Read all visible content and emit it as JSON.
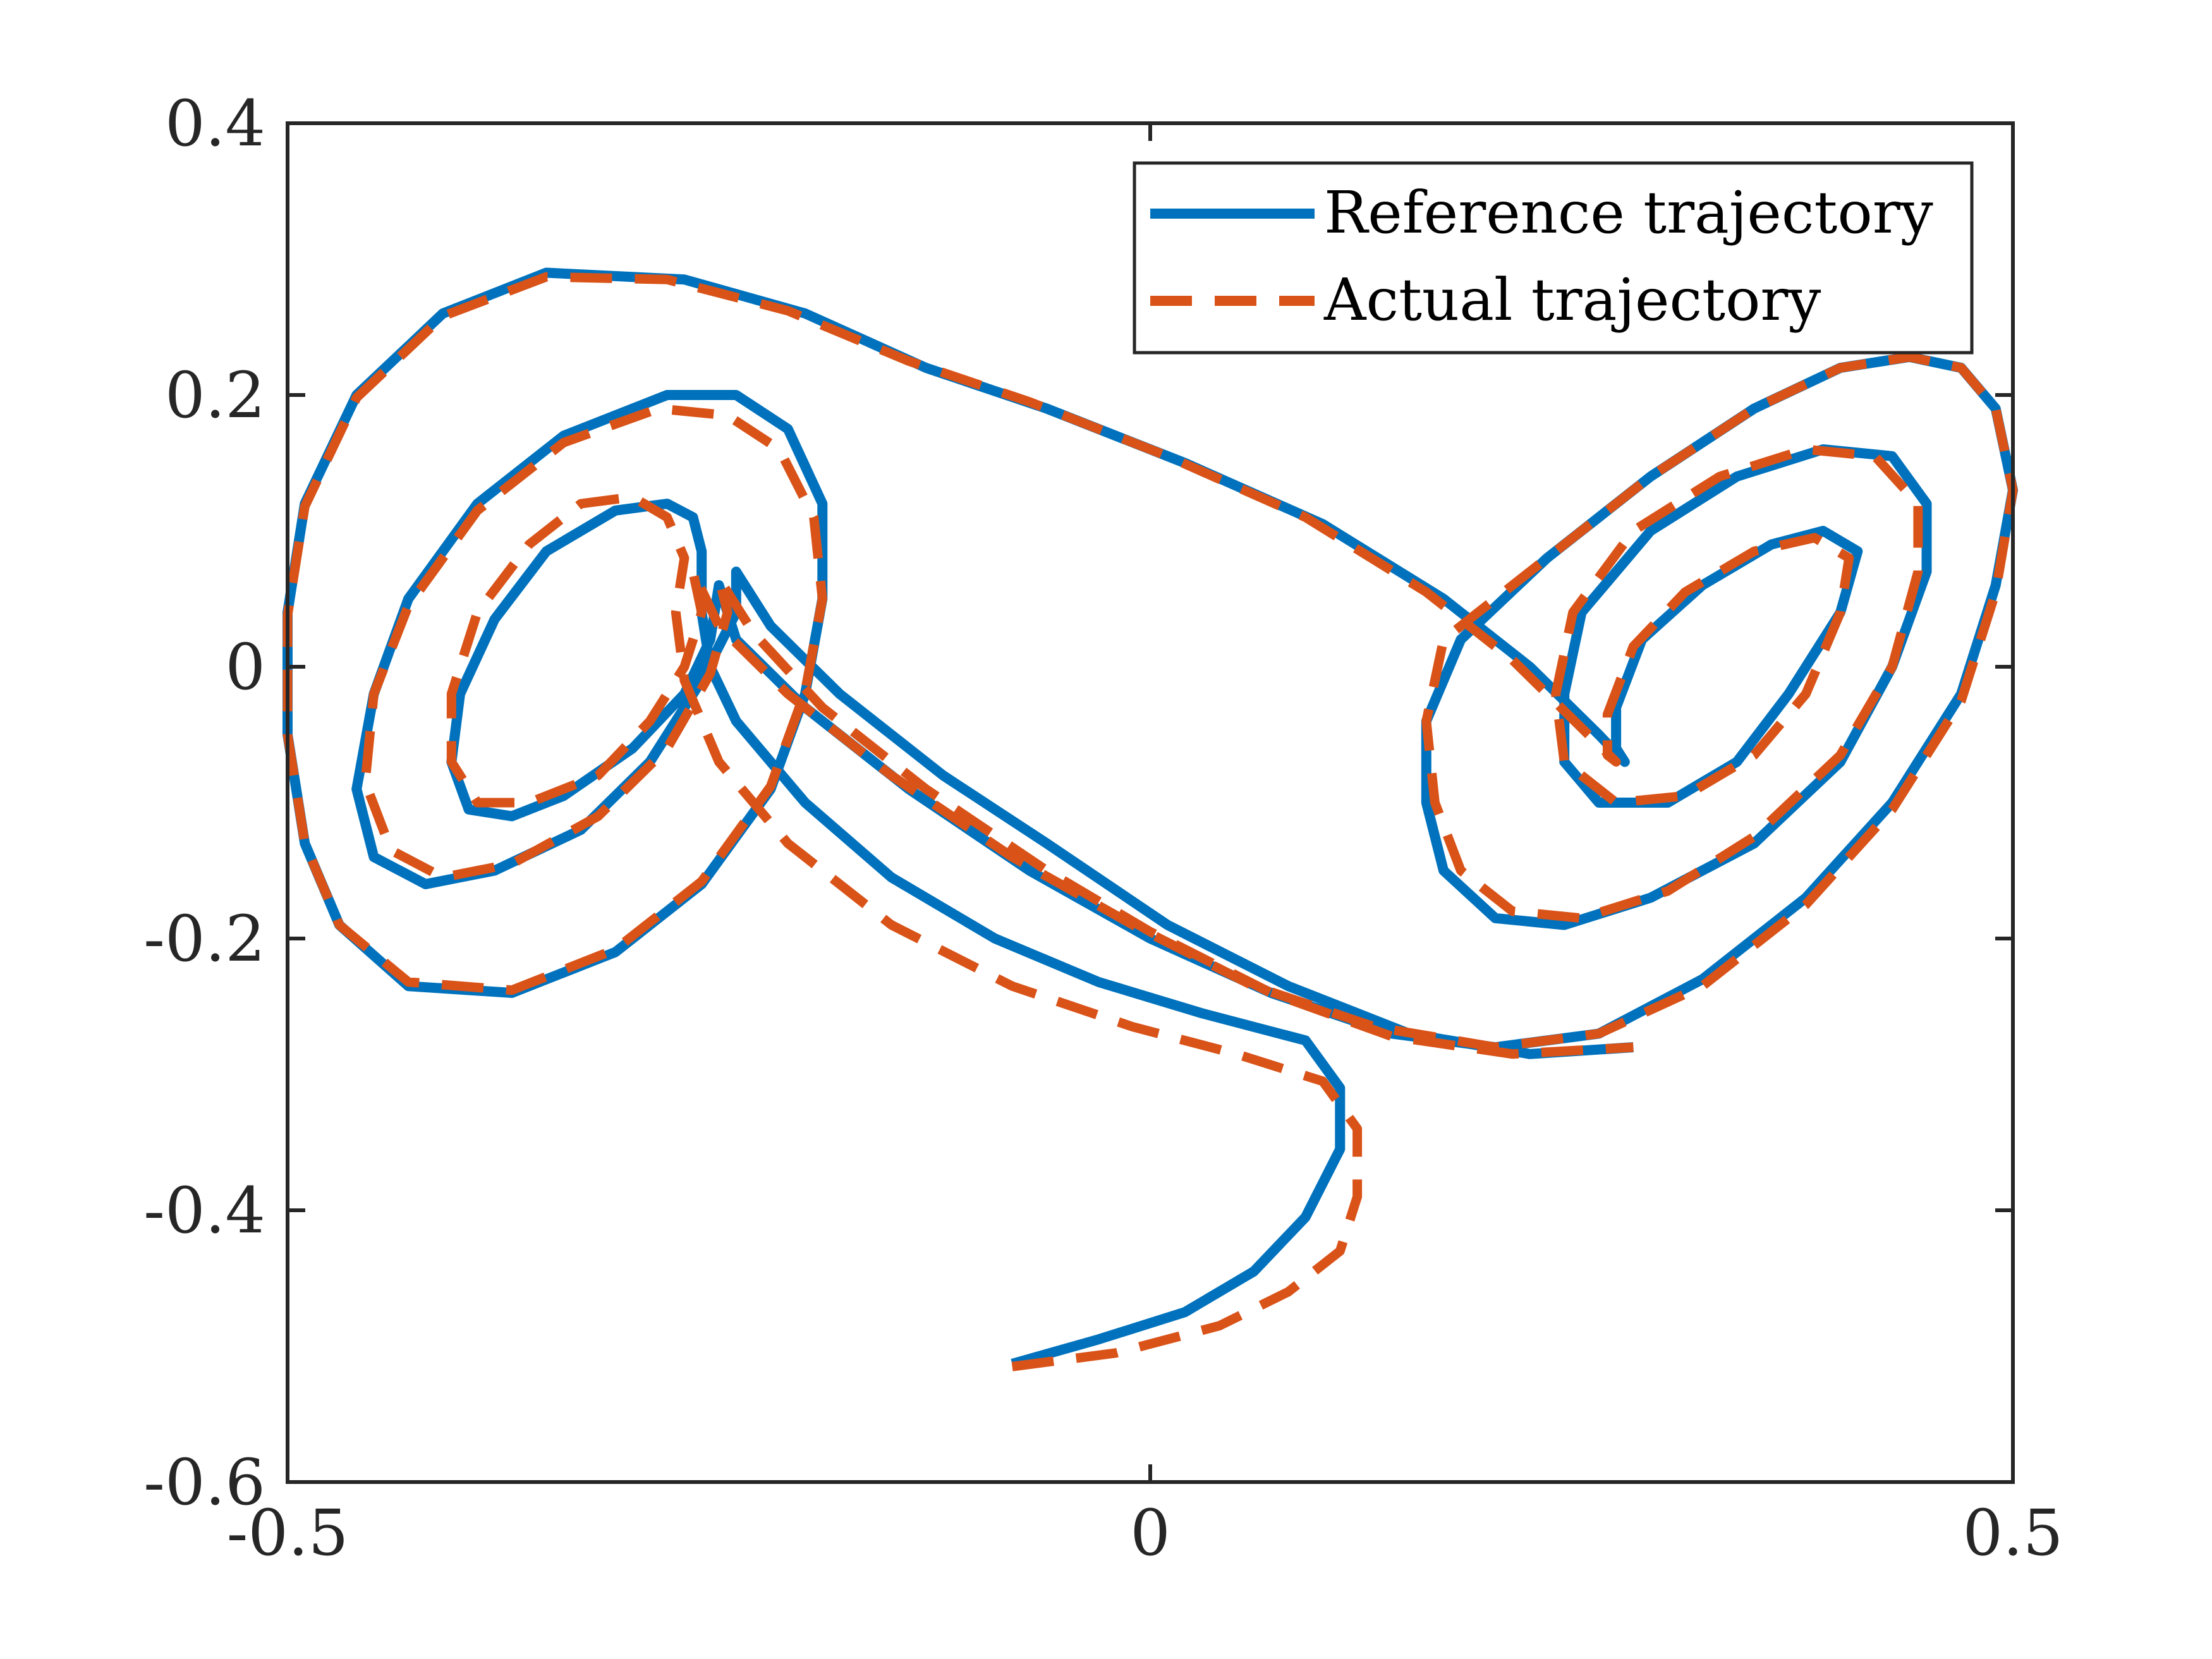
{
  "chart_data": {
    "type": "line",
    "title": "",
    "xlabel": "",
    "ylabel": "",
    "xlim": [
      -0.5,
      0.5
    ],
    "ylim": [
      -0.6,
      0.4
    ],
    "xticks": [
      {
        "value": -0.5,
        "label": "-0.5"
      },
      {
        "value": 0,
        "label": "0"
      },
      {
        "value": 0.5,
        "label": "0.5"
      }
    ],
    "yticks": [
      {
        "value": 0.4,
        "label": "0.4"
      },
      {
        "value": 0.2,
        "label": "0.2"
      },
      {
        "value": 0,
        "label": "0"
      },
      {
        "value": -0.2,
        "label": "-0.2"
      },
      {
        "value": -0.4,
        "label": "-0.4"
      },
      {
        "value": -0.6,
        "label": "-0.6"
      }
    ],
    "grid": false,
    "legend_position": "top-right",
    "series": [
      {
        "name": "Reference trajectory",
        "style": "solid",
        "color": "#0072BD",
        "points": [
          [
            -0.08,
            -0.513
          ],
          [
            -0.03,
            -0.495
          ],
          [
            0.02,
            -0.475
          ],
          [
            0.06,
            -0.445
          ],
          [
            0.09,
            -0.405
          ],
          [
            0.11,
            -0.355
          ],
          [
            0.11,
            -0.31
          ],
          [
            0.09,
            -0.275
          ],
          [
            0.03,
            -0.255
          ],
          [
            -0.03,
            -0.232
          ],
          [
            -0.09,
            -0.2
          ],
          [
            -0.15,
            -0.155
          ],
          [
            -0.2,
            -0.1
          ],
          [
            -0.24,
            -0.04
          ],
          [
            -0.255,
            0.0
          ],
          [
            -0.26,
            0.04
          ],
          [
            -0.26,
            0.085
          ],
          [
            -0.265,
            0.11
          ],
          [
            -0.28,
            0.12
          ],
          [
            -0.31,
            0.115
          ],
          [
            -0.35,
            0.085
          ],
          [
            -0.38,
            0.035
          ],
          [
            -0.4,
            -0.02
          ],
          [
            -0.405,
            -0.07
          ],
          [
            -0.395,
            -0.105
          ],
          [
            -0.37,
            -0.11
          ],
          [
            -0.34,
            -0.095
          ],
          [
            -0.3,
            -0.06
          ],
          [
            -0.27,
            -0.02
          ],
          [
            -0.255,
            0.02
          ],
          [
            -0.25,
            0.06
          ],
          [
            -0.24,
            0.02
          ],
          [
            -0.2,
            -0.03
          ],
          [
            -0.14,
            -0.09
          ],
          [
            -0.07,
            -0.15
          ],
          [
            0.0,
            -0.2
          ],
          [
            0.07,
            -0.24
          ],
          [
            0.14,
            -0.27
          ],
          [
            0.2,
            -0.28
          ],
          [
            0.26,
            -0.27
          ],
          [
            0.32,
            -0.23
          ],
          [
            0.38,
            -0.17
          ],
          [
            0.43,
            -0.1
          ],
          [
            0.47,
            -0.02
          ],
          [
            0.49,
            0.06
          ],
          [
            0.5,
            0.13
          ],
          [
            0.49,
            0.19
          ],
          [
            0.47,
            0.22
          ],
          [
            0.44,
            0.228
          ],
          [
            0.4,
            0.22
          ],
          [
            0.35,
            0.19
          ],
          [
            0.29,
            0.14
          ],
          [
            0.23,
            0.08
          ],
          [
            0.18,
            0.02
          ],
          [
            0.16,
            -0.04
          ],
          [
            0.16,
            -0.1
          ],
          [
            0.17,
            -0.15
          ],
          [
            0.2,
            -0.185
          ],
          [
            0.24,
            -0.19
          ],
          [
            0.29,
            -0.17
          ],
          [
            0.35,
            -0.13
          ],
          [
            0.4,
            -0.07
          ],
          [
            0.43,
            0.0
          ],
          [
            0.45,
            0.07
          ],
          [
            0.45,
            0.12
          ],
          [
            0.43,
            0.155
          ],
          [
            0.39,
            0.16
          ],
          [
            0.34,
            0.14
          ],
          [
            0.29,
            0.1
          ],
          [
            0.25,
            0.04
          ],
          [
            0.24,
            -0.02
          ],
          [
            0.24,
            -0.07
          ],
          [
            0.26,
            -0.1
          ],
          [
            0.3,
            -0.1
          ],
          [
            0.34,
            -0.07
          ],
          [
            0.37,
            -0.02
          ],
          [
            0.4,
            0.04
          ],
          [
            0.41,
            0.085
          ],
          [
            0.39,
            0.1
          ],
          [
            0.36,
            0.09
          ],
          [
            0.32,
            0.06
          ],
          [
            0.285,
            0.02
          ],
          [
            0.27,
            -0.03
          ],
          [
            0.27,
            -0.06
          ],
          [
            0.275,
            -0.07
          ],
          [
            0.26,
            -0.05
          ],
          [
            0.22,
            0.0
          ],
          [
            0.17,
            0.05
          ],
          [
            0.1,
            0.105
          ],
          [
            0.02,
            0.15
          ],
          [
            -0.06,
            0.19
          ],
          [
            -0.13,
            0.22
          ],
          [
            -0.2,
            0.26
          ],
          [
            -0.27,
            0.285
          ],
          [
            -0.35,
            0.29
          ],
          [
            -0.41,
            0.26
          ],
          [
            -0.46,
            0.2
          ],
          [
            -0.49,
            0.12
          ],
          [
            -0.5,
            0.04
          ],
          [
            -0.5,
            -0.05
          ],
          [
            -0.49,
            -0.13
          ],
          [
            -0.47,
            -0.19
          ],
          [
            -0.43,
            -0.235
          ],
          [
            -0.37,
            -0.24
          ],
          [
            -0.31,
            -0.21
          ],
          [
            -0.26,
            -0.16
          ],
          [
            -0.22,
            -0.09
          ],
          [
            -0.2,
            -0.02
          ],
          [
            -0.19,
            0.05
          ],
          [
            -0.19,
            0.12
          ],
          [
            -0.21,
            0.175
          ],
          [
            -0.24,
            0.2
          ],
          [
            -0.28,
            0.2
          ],
          [
            -0.34,
            0.17
          ],
          [
            -0.39,
            0.12
          ],
          [
            -0.43,
            0.05
          ],
          [
            -0.45,
            -0.02
          ],
          [
            -0.46,
            -0.09
          ],
          [
            -0.45,
            -0.14
          ],
          [
            -0.42,
            -0.16
          ],
          [
            -0.38,
            -0.15
          ],
          [
            -0.33,
            -0.12
          ],
          [
            -0.29,
            -0.07
          ],
          [
            -0.26,
            -0.01
          ],
          [
            -0.24,
            0.04
          ],
          [
            -0.24,
            0.07
          ],
          [
            -0.22,
            0.03
          ],
          [
            -0.18,
            -0.02
          ],
          [
            -0.12,
            -0.08
          ],
          [
            -0.06,
            -0.13
          ],
          [
            0.01,
            -0.19
          ],
          [
            0.08,
            -0.235
          ],
          [
            0.15,
            -0.27
          ],
          [
            0.22,
            -0.285
          ],
          [
            0.28,
            -0.28
          ]
        ]
      },
      {
        "name": "Actual trajectory",
        "style": "dashed",
        "color": "#D95319",
        "points": [
          [
            -0.08,
            -0.515
          ],
          [
            -0.02,
            -0.505
          ],
          [
            0.04,
            -0.485
          ],
          [
            0.08,
            -0.46
          ],
          [
            0.11,
            -0.43
          ],
          [
            0.12,
            -0.39
          ],
          [
            0.12,
            -0.34
          ],
          [
            0.1,
            -0.305
          ],
          [
            0.05,
            -0.285
          ],
          [
            -0.01,
            -0.265
          ],
          [
            -0.08,
            -0.235
          ],
          [
            -0.15,
            -0.19
          ],
          [
            -0.21,
            -0.13
          ],
          [
            -0.25,
            -0.07
          ],
          [
            -0.27,
            -0.01
          ],
          [
            -0.275,
            0.04
          ],
          [
            -0.27,
            0.08
          ],
          [
            -0.28,
            0.11
          ],
          [
            -0.3,
            0.125
          ],
          [
            -0.33,
            0.12
          ],
          [
            -0.36,
            0.09
          ],
          [
            -0.39,
            0.04
          ],
          [
            -0.405,
            -0.02
          ],
          [
            -0.405,
            -0.07
          ],
          [
            -0.39,
            -0.1
          ],
          [
            -0.36,
            -0.1
          ],
          [
            -0.32,
            -0.08
          ],
          [
            -0.29,
            -0.04
          ],
          [
            -0.27,
            0.0
          ],
          [
            -0.26,
            0.04
          ],
          [
            -0.265,
            0.07
          ],
          [
            -0.25,
            0.03
          ],
          [
            -0.21,
            -0.02
          ],
          [
            -0.15,
            -0.08
          ],
          [
            -0.08,
            -0.14
          ],
          [
            -0.01,
            -0.19
          ],
          [
            0.06,
            -0.235
          ],
          [
            0.13,
            -0.265
          ],
          [
            0.2,
            -0.28
          ],
          [
            0.26,
            -0.27
          ],
          [
            0.32,
            -0.235
          ],
          [
            0.38,
            -0.175
          ],
          [
            0.43,
            -0.105
          ],
          [
            0.47,
            -0.025
          ],
          [
            0.49,
            0.055
          ],
          [
            0.5,
            0.13
          ],
          [
            0.49,
            0.19
          ],
          [
            0.47,
            0.22
          ],
          [
            0.44,
            0.228
          ],
          [
            0.4,
            0.22
          ],
          [
            0.35,
            0.19
          ],
          [
            0.29,
            0.14
          ],
          [
            0.23,
            0.08
          ],
          [
            0.17,
            0.02
          ],
          [
            0.16,
            -0.04
          ],
          [
            0.165,
            -0.1
          ],
          [
            0.18,
            -0.15
          ],
          [
            0.21,
            -0.18
          ],
          [
            0.25,
            -0.185
          ],
          [
            0.3,
            -0.165
          ],
          [
            0.35,
            -0.125
          ],
          [
            0.4,
            -0.065
          ],
          [
            0.43,
            0.0
          ],
          [
            0.445,
            0.07
          ],
          [
            0.445,
            0.12
          ],
          [
            0.42,
            0.155
          ],
          [
            0.38,
            0.16
          ],
          [
            0.33,
            0.14
          ],
          [
            0.28,
            0.1
          ],
          [
            0.245,
            0.04
          ],
          [
            0.235,
            -0.02
          ],
          [
            0.24,
            -0.07
          ],
          [
            0.27,
            -0.1
          ],
          [
            0.31,
            -0.095
          ],
          [
            0.35,
            -0.065
          ],
          [
            0.38,
            -0.02
          ],
          [
            0.4,
            0.04
          ],
          [
            0.405,
            0.08
          ],
          [
            0.385,
            0.095
          ],
          [
            0.35,
            0.085
          ],
          [
            0.31,
            0.055
          ],
          [
            0.28,
            0.015
          ],
          [
            0.265,
            -0.035
          ],
          [
            0.265,
            -0.065
          ],
          [
            0.27,
            -0.07
          ],
          [
            0.25,
            -0.045
          ],
          [
            0.21,
            0.005
          ],
          [
            0.16,
            0.055
          ],
          [
            0.09,
            0.11
          ],
          [
            0.01,
            0.155
          ],
          [
            -0.07,
            0.195
          ],
          [
            -0.14,
            0.225
          ],
          [
            -0.21,
            0.262
          ],
          [
            -0.28,
            0.285
          ],
          [
            -0.35,
            0.287
          ],
          [
            -0.41,
            0.258
          ],
          [
            -0.46,
            0.198
          ],
          [
            -0.49,
            0.118
          ],
          [
            -0.5,
            0.038
          ],
          [
            -0.5,
            -0.05
          ],
          [
            -0.49,
            -0.13
          ],
          [
            -0.47,
            -0.19
          ],
          [
            -0.43,
            -0.232
          ],
          [
            -0.37,
            -0.238
          ],
          [
            -0.31,
            -0.208
          ],
          [
            -0.26,
            -0.158
          ],
          [
            -0.22,
            -0.088
          ],
          [
            -0.2,
            -0.018
          ],
          [
            -0.19,
            0.05
          ],
          [
            -0.195,
            0.11
          ],
          [
            -0.215,
            0.16
          ],
          [
            -0.245,
            0.185
          ],
          [
            -0.285,
            0.19
          ],
          [
            -0.34,
            0.165
          ],
          [
            -0.39,
            0.115
          ],
          [
            -0.43,
            0.045
          ],
          [
            -0.45,
            -0.02
          ],
          [
            -0.455,
            -0.085
          ],
          [
            -0.44,
            -0.135
          ],
          [
            -0.41,
            -0.155
          ],
          [
            -0.37,
            -0.145
          ],
          [
            -0.32,
            -0.11
          ],
          [
            -0.28,
            -0.06
          ],
          [
            -0.255,
            -0.005
          ],
          [
            -0.245,
            0.04
          ],
          [
            -0.25,
            0.065
          ],
          [
            -0.23,
            0.025
          ],
          [
            -0.19,
            -0.03
          ],
          [
            -0.13,
            -0.09
          ],
          [
            -0.06,
            -0.15
          ],
          [
            0.0,
            -0.195
          ],
          [
            0.07,
            -0.24
          ],
          [
            0.14,
            -0.272
          ],
          [
            0.21,
            -0.285
          ],
          [
            0.28,
            -0.28
          ]
        ]
      }
    ]
  }
}
